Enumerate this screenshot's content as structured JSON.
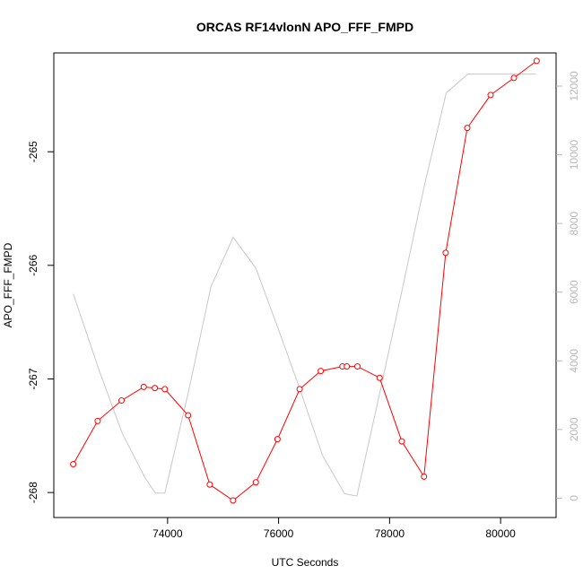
{
  "chart_data": {
    "type": "line",
    "title": "ORCAS RF14vlonN APO_FFF_FMPD",
    "xlabel": "UTC Seconds",
    "ylabel": "APO_FFF_FMPD",
    "xlim": [
      71950,
      81000
    ],
    "ylim": [
      -268.22,
      -264.13
    ],
    "y2lim": [
      -564,
      12966
    ],
    "xticks": [
      74000,
      76000,
      78000,
      80000
    ],
    "yticks": [
      -268,
      -267,
      -266,
      -265
    ],
    "y2ticks": [
      0,
      2000,
      4000,
      6000,
      8000,
      10000,
      12000
    ],
    "series": [
      {
        "axis": "left",
        "color": "#ff0000",
        "markers": "open-circle",
        "x": [
          72300,
          72740,
          73170,
          73570,
          73770,
          73950,
          74370,
          74760,
          75180,
          75590,
          75980,
          76380,
          76760,
          77150,
          77230,
          77420,
          77820,
          78220,
          78620,
          79010,
          79400,
          79820,
          80240,
          80650
        ],
        "y": [
          -267.75,
          -267.37,
          -267.19,
          -267.07,
          -267.08,
          -267.09,
          -267.32,
          -267.93,
          -268.07,
          -267.91,
          -267.53,
          -267.09,
          -266.93,
          -266.89,
          -266.89,
          -266.89,
          -266.99,
          -267.55,
          -267.86,
          -265.89,
          -264.79,
          -264.5,
          -264.35,
          -264.2
        ]
      },
      {
        "axis": "right",
        "color": "#c8c8c8",
        "x": [
          72300,
          72750,
          73180,
          73590,
          73780,
          73950,
          74390,
          74780,
          75180,
          75590,
          75990,
          76390,
          76790,
          77190,
          77410,
          77800,
          78210,
          78620,
          79020,
          79410,
          79810,
          80210,
          80640
        ],
        "y": [
          5950,
          3800,
          1900,
          600,
          150,
          150,
          3200,
          6150,
          7600,
          6700,
          4950,
          3150,
          1250,
          130,
          60,
          2900,
          5950,
          9050,
          11800,
          12350,
          12350,
          12350,
          12350
        ]
      }
    ]
  }
}
